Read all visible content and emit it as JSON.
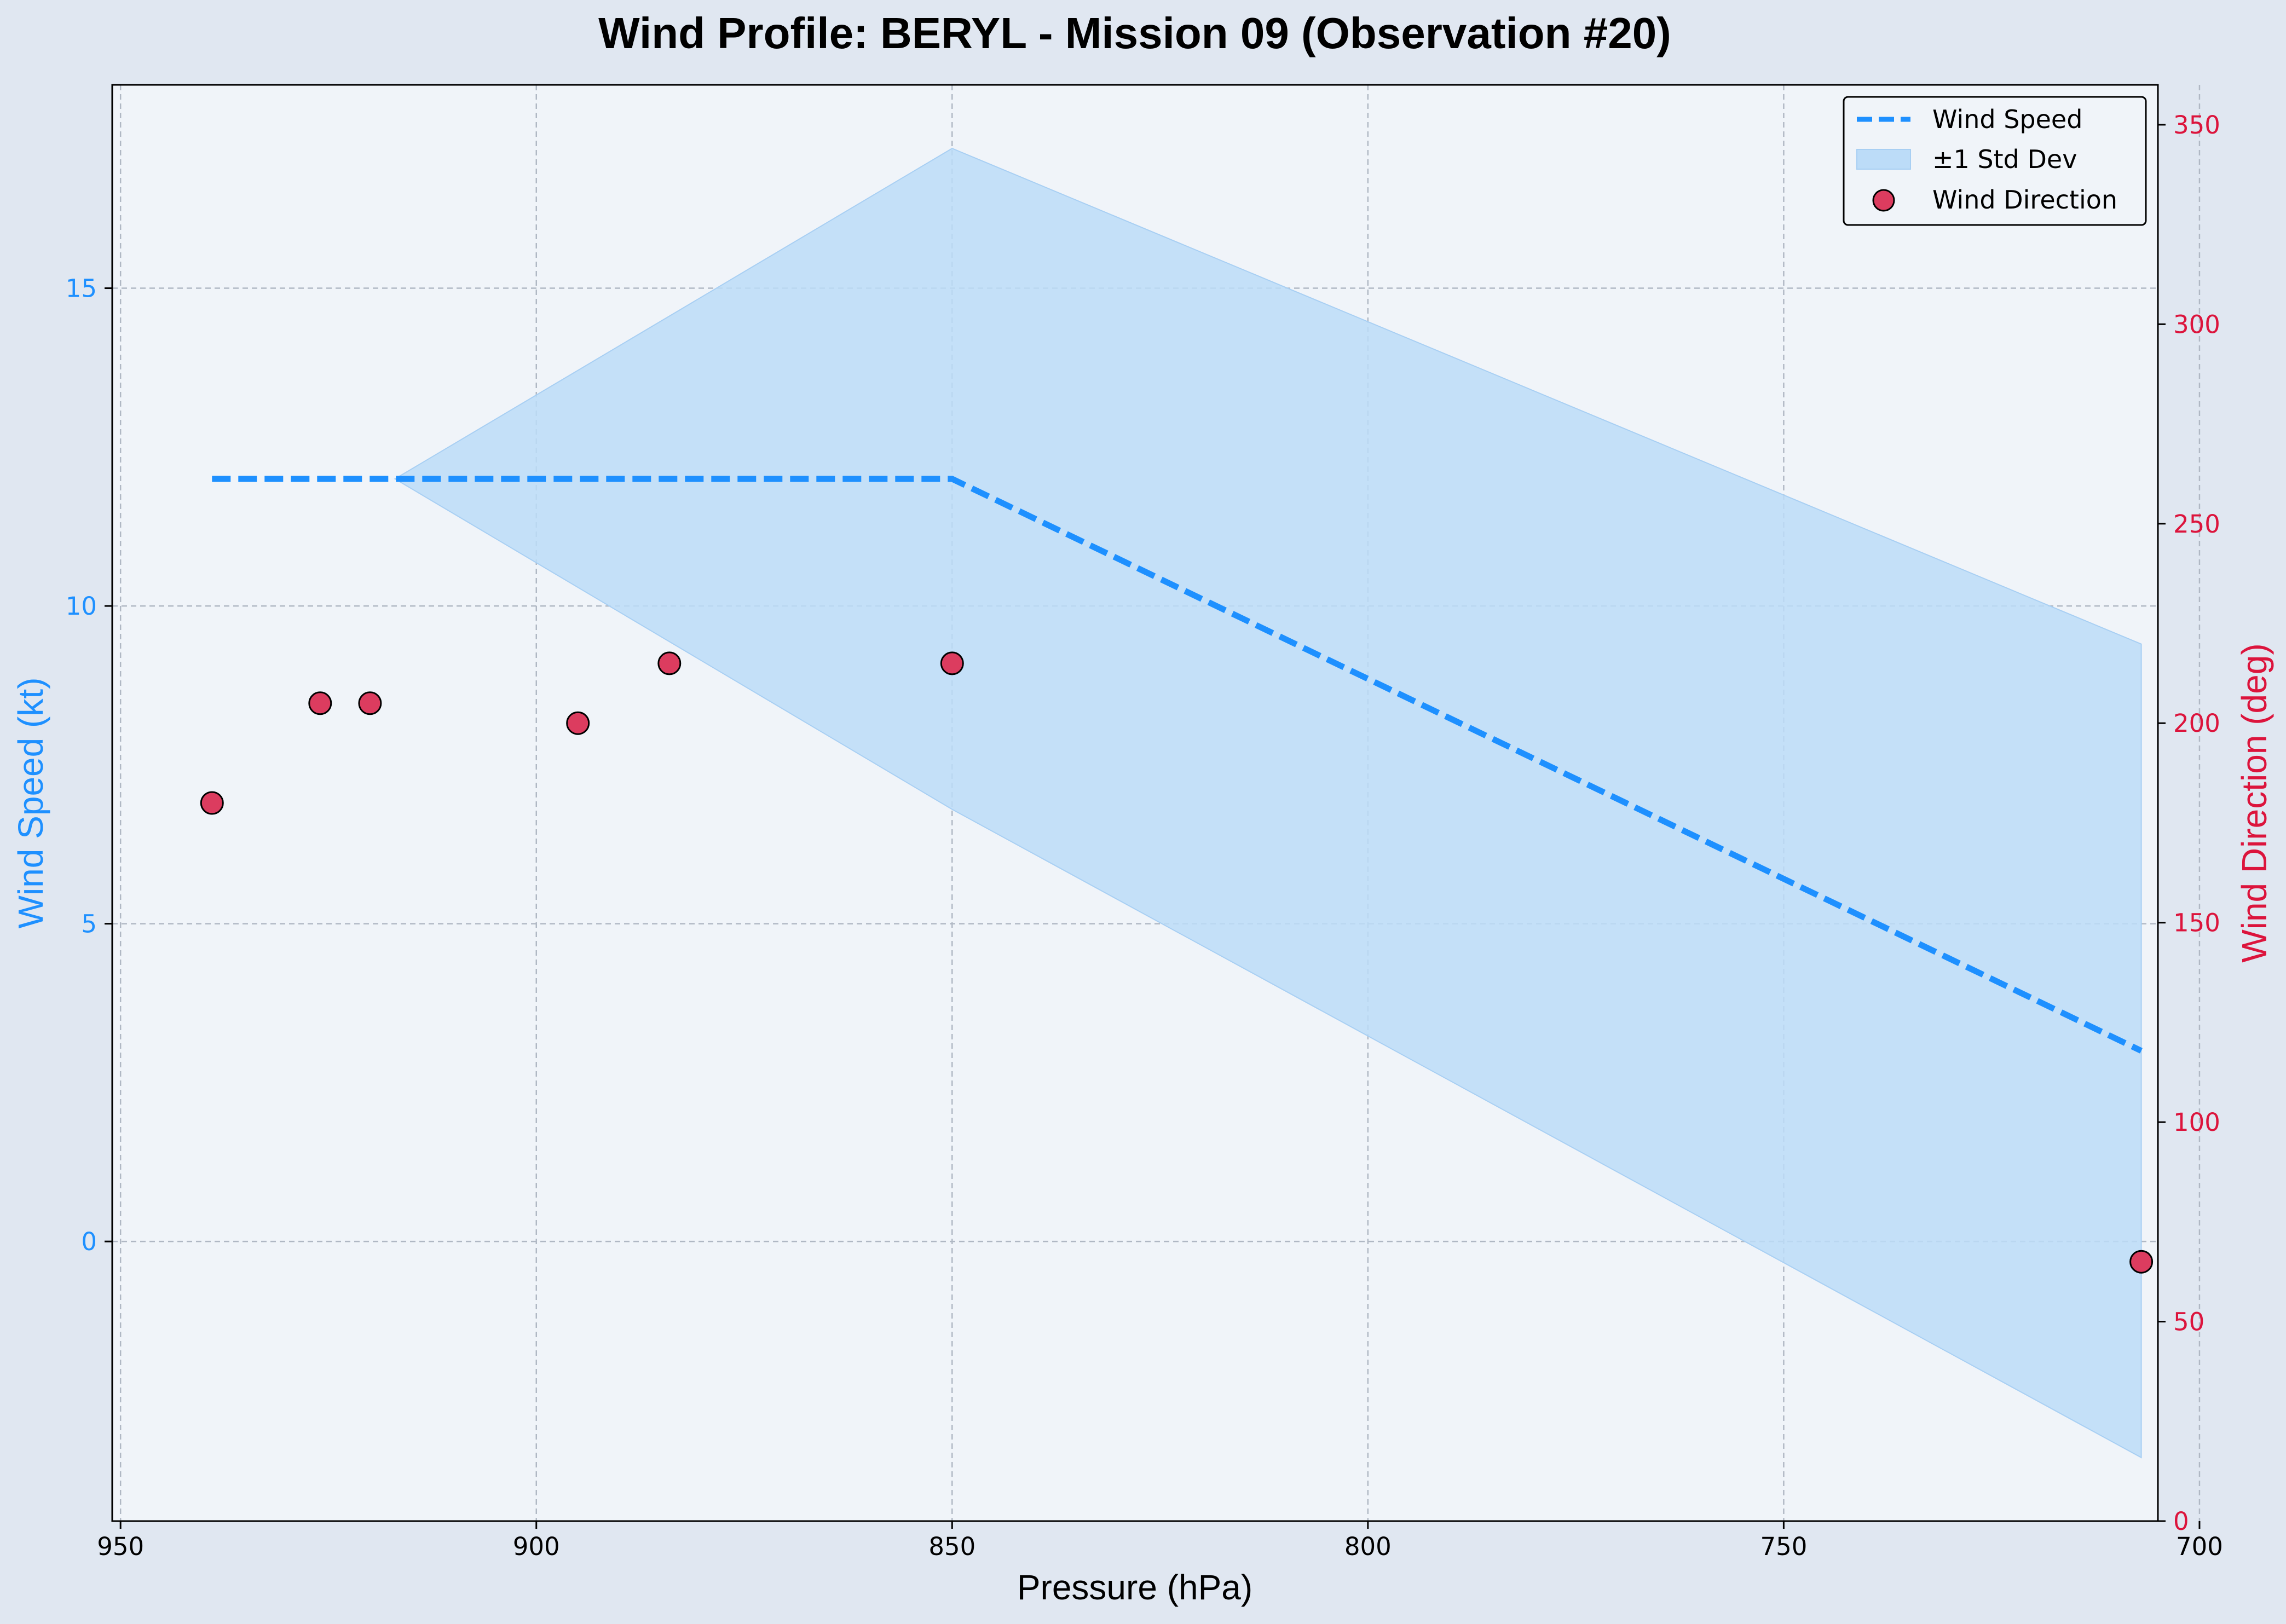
{
  "chart_data": {
    "type": "line",
    "title": "Wind Profile: BERYL - Mission 09 (Observation #20)",
    "xlabel": "Pressure (hPa)",
    "ylabel": "Wind Speed (kt)",
    "y2label": "Wind Direction (deg)",
    "x_inverted": true,
    "xlim": [
      951,
      705
    ],
    "ylim": [
      -4.4,
      18.2
    ],
    "y2lim": [
      0,
      360
    ],
    "xticks": [
      950,
      900,
      850,
      800,
      750,
      700
    ],
    "yticks": [
      0,
      5,
      10,
      15
    ],
    "y2ticks": [
      0,
      50,
      100,
      150,
      200,
      250,
      300,
      350
    ],
    "grid": true,
    "legend_position": "top-right",
    "colors": {
      "speed": "#1e90ff",
      "band": "#bcdcf8",
      "direction_fill": "#dc3c5f",
      "direction_axis": "#dc143c",
      "plot_bg": "#f0f4f9",
      "page_bg": "#e0e7f1"
    },
    "series": [
      {
        "name": "Wind Speed",
        "kind": "line",
        "style": "dashed",
        "x": [
          939,
          917,
          850,
          707
        ],
        "y": [
          12,
          12,
          12,
          3
        ]
      },
      {
        "name": "±1 Std Dev",
        "kind": "band",
        "x": [
          917,
          850,
          707
        ],
        "upper": [
          12,
          17.2,
          9.4
        ],
        "lower": [
          12,
          6.8,
          -3.4
        ]
      },
      {
        "name": "Wind Direction",
        "kind": "scatter",
        "axis": "y2",
        "x": [
          939,
          926,
          920,
          895,
          884,
          850,
          707
        ],
        "y": [
          180,
          205,
          205,
          200,
          215,
          215,
          65
        ]
      }
    ]
  }
}
